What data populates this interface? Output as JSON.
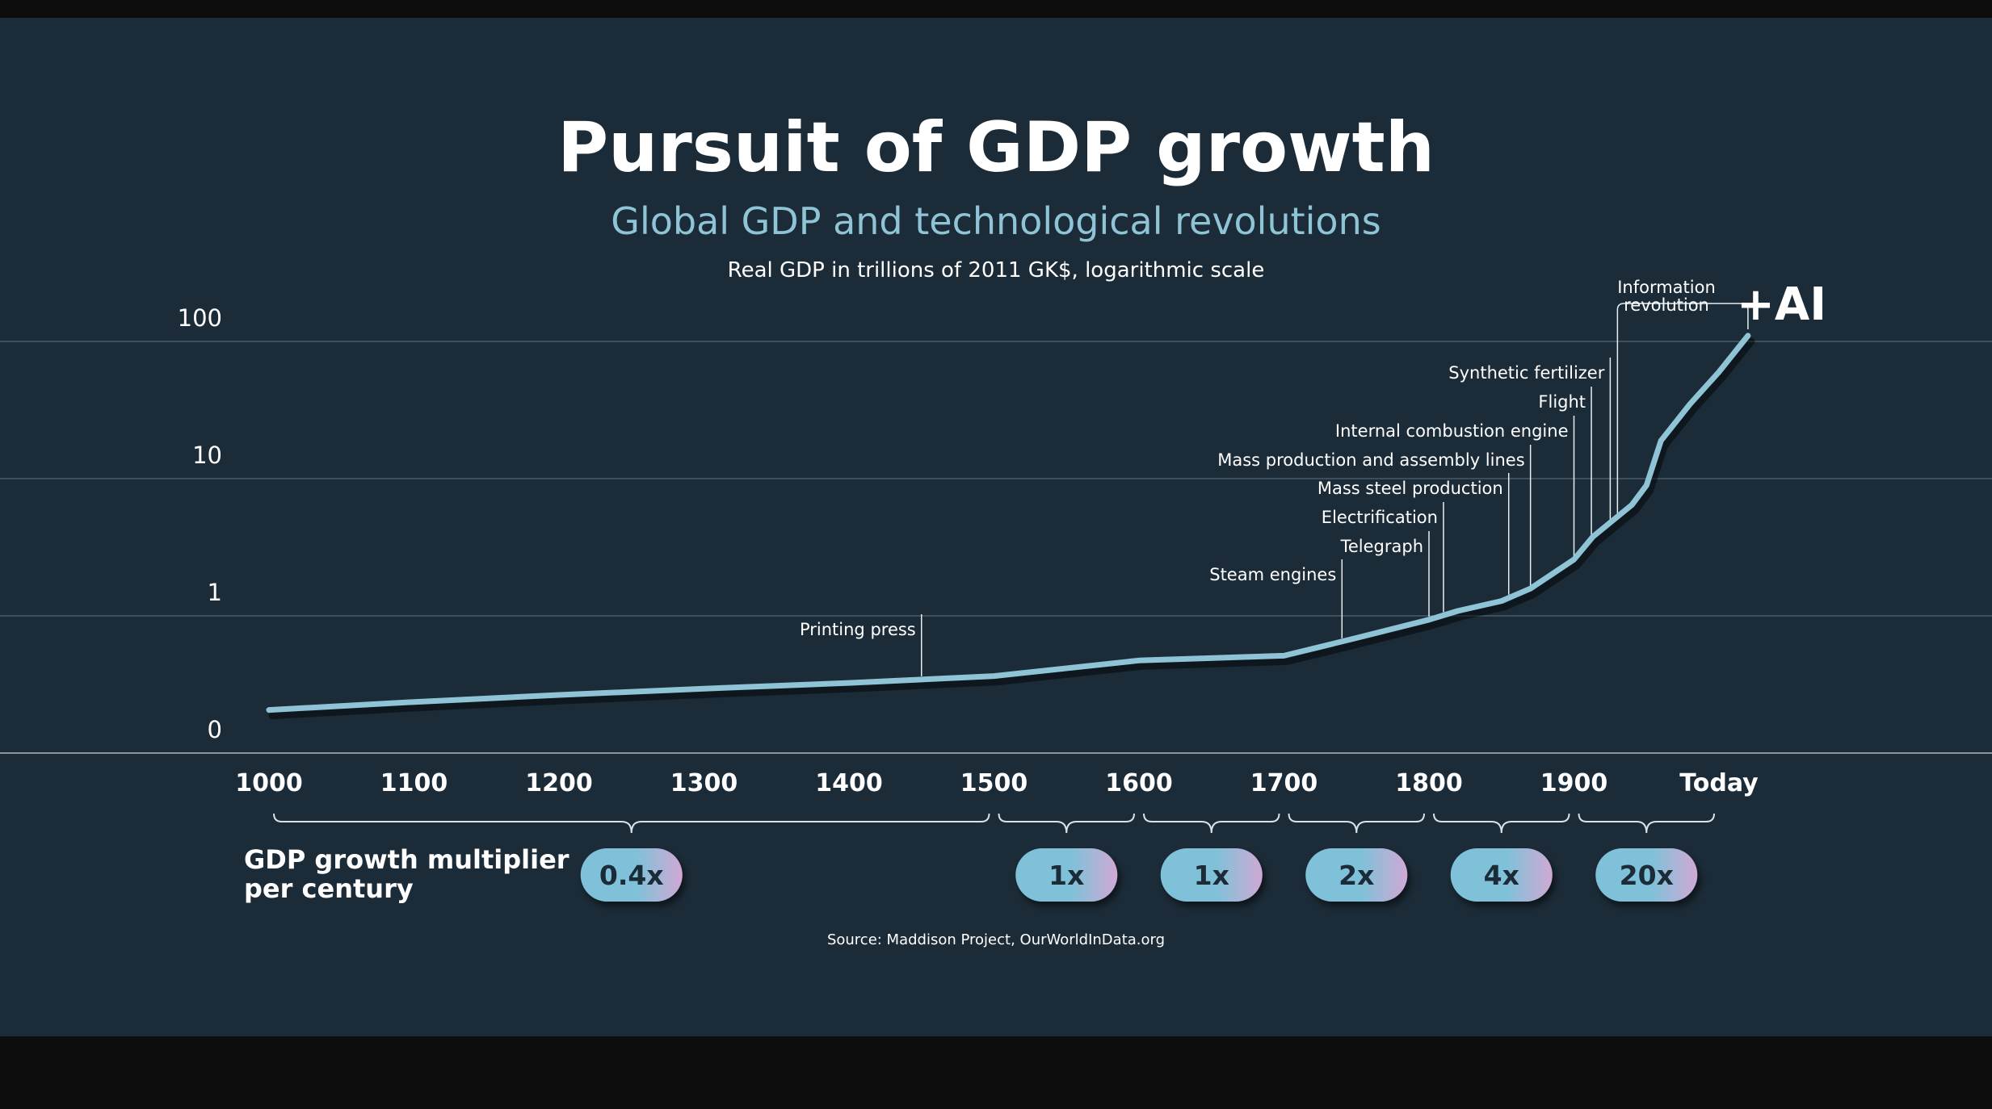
{
  "chart_data": {
    "type": "line",
    "title": "Pursuit of GDP growth",
    "subtitle": "Global GDP and technological revolutions",
    "ylabel": "Real GDP in trillions of 2011 GK$, logarithmic scale",
    "y_scale": "log",
    "y_ticks": [
      "100",
      "10",
      "1",
      "0"
    ],
    "x_ticks": [
      "1000",
      "1100",
      "1200",
      "1300",
      "1400",
      "1500",
      "1600",
      "1700",
      "1800",
      "1900",
      "Today"
    ],
    "grid": true,
    "series": [
      {
        "x": [
          1000,
          1100,
          1200,
          1300,
          1400,
          1500,
          1600,
          1700,
          1750,
          1800,
          1820,
          1850,
          1870,
          1900,
          1913,
          1940,
          1950,
          1960,
          1980,
          2000,
          2020
        ],
        "y": [
          0.21,
          0.24,
          0.27,
          0.3,
          0.33,
          0.37,
          0.48,
          0.52,
          0.7,
          0.95,
          1.1,
          1.3,
          1.6,
          2.6,
          3.8,
          6.5,
          9.0,
          19,
          35,
          60,
          110
        ]
      }
    ],
    "annotations": [
      {
        "label": "Printing press",
        "x": 1450
      },
      {
        "label": "Steam engines",
        "x": 1740
      },
      {
        "label": "Telegraph",
        "x": 1800
      },
      {
        "label": "Electrification",
        "x": 1810
      },
      {
        "label": "Mass steel production",
        "x": 1855
      },
      {
        "label": "Mass production and assembly lines",
        "x": 1870
      },
      {
        "label": "Internal combustion engine",
        "x": 1900
      },
      {
        "label": "Flight",
        "x": 1912
      },
      {
        "label": "Synthetic fertilizer",
        "x": 1925
      },
      {
        "label": "Information revolution",
        "x": 1930
      }
    ],
    "ai_label": "+AI",
    "multiplier_label": "GDP growth multiplier per century",
    "multipliers": [
      {
        "from": 1000,
        "to": 1500,
        "label": "0.4x"
      },
      {
        "from": 1500,
        "to": 1600,
        "label": "1x"
      },
      {
        "from": 1600,
        "to": 1700,
        "label": "1x"
      },
      {
        "from": 1700,
        "to": 1800,
        "label": "2x"
      },
      {
        "from": 1800,
        "to": 1900,
        "label": "4x"
      },
      {
        "from": 1900,
        "to": 2000,
        "label": "20x"
      }
    ],
    "source": "Source: Maddison Project, OurWorldInData.org",
    "colors": {
      "background": "#1b2b37",
      "line": "#8fc4d6",
      "grid": "#4a5a66",
      "pill_start": "#7fc1d8",
      "pill_end": "#d0a9d4"
    }
  }
}
